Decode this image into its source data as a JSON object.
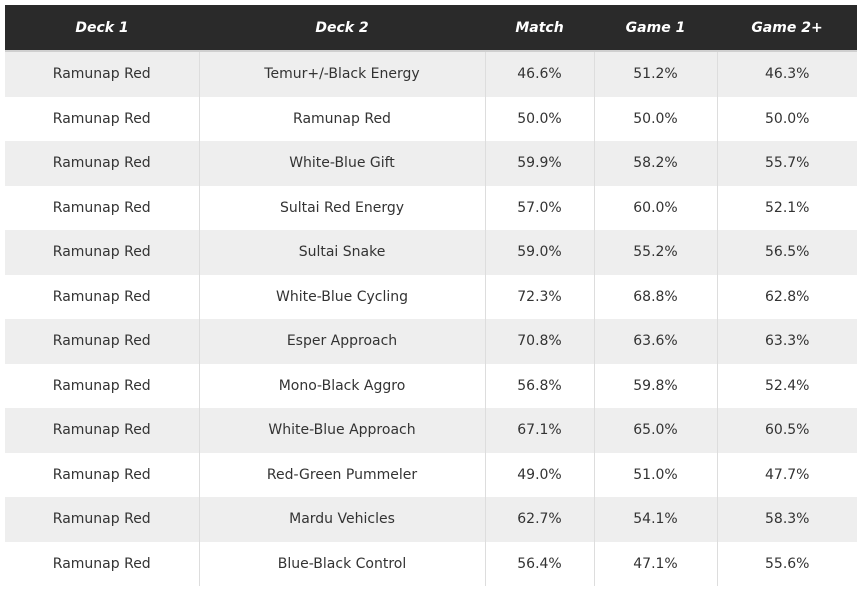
{
  "table": {
    "header": [
      "Deck 1",
      "Deck 2",
      "Match",
      "Game 1",
      "Game 2+"
    ],
    "rows": [
      [
        "Ramunap Red",
        "Temur+/-Black Energy",
        "46.6%",
        "51.2%",
        "46.3%"
      ],
      [
        "Ramunap Red",
        "Ramunap Red",
        "50.0%",
        "50.0%",
        "50.0%"
      ],
      [
        "Ramunap Red",
        "White-Blue Gift",
        "59.9%",
        "58.2%",
        "55.7%"
      ],
      [
        "Ramunap Red",
        "Sultai Red Energy",
        "57.0%",
        "60.0%",
        "52.1%"
      ],
      [
        "Ramunap Red",
        "Sultai Snake",
        "59.0%",
        "55.2%",
        "56.5%"
      ],
      [
        "Ramunap Red",
        "White-Blue Cycling",
        "72.3%",
        "68.8%",
        "62.8%"
      ],
      [
        "Ramunap Red",
        "Esper Approach",
        "70.8%",
        "63.6%",
        "63.3%"
      ],
      [
        "Ramunap Red",
        "Mono-Black Aggro",
        "56.8%",
        "59.8%",
        "52.4%"
      ],
      [
        "Ramunap Red",
        "White-Blue Approach",
        "67.1%",
        "65.0%",
        "60.5%"
      ],
      [
        "Ramunap Red",
        "Red-Green Pummeler",
        "49.0%",
        "51.0%",
        "47.7%"
      ],
      [
        "Ramunap Red",
        "Mardu Vehicles",
        "62.7%",
        "54.1%",
        "58.3%"
      ],
      [
        "Ramunap Red",
        "Blue-Black Control",
        "56.4%",
        "47.1%",
        "55.6%"
      ]
    ]
  }
}
